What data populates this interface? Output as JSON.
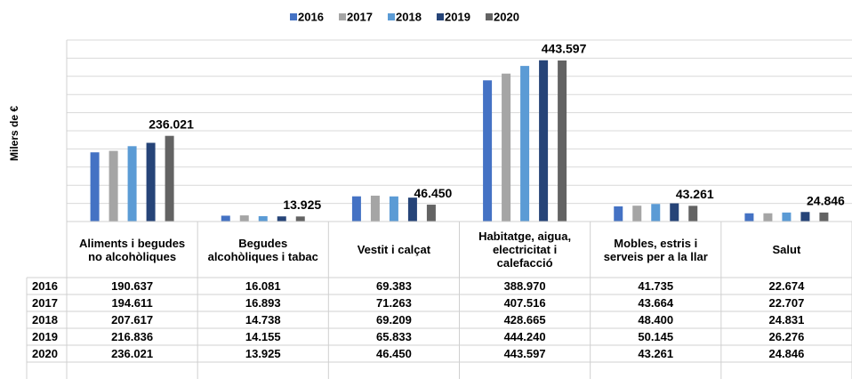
{
  "chart_data": {
    "type": "bar",
    "y_label": "Milers de €",
    "categories": [
      "Aliments i begudes no alcohòliques",
      "Begudes alcohòliques i tabac",
      "Vestit i calçat",
      "Habitatge, aigua, electricitat i calefacció",
      "Mobles, estris i serveis per a la llar",
      "Salut"
    ],
    "ylim": [
      0,
      500000
    ],
    "yticks": [
      0,
      50000,
      100000,
      150000,
      200000,
      250000,
      300000,
      350000,
      400000,
      450000,
      500000
    ],
    "grid": true,
    "legend": "top",
    "series": [
      {
        "name": "2016",
        "color": "#4472c4",
        "values": [
          190637,
          16081,
          69383,
          388970,
          41735,
          22674
        ],
        "value_labels": [
          "190.637",
          "16.081",
          "69.383",
          "388.970",
          "41.735",
          "22.674"
        ]
      },
      {
        "name": "2017",
        "color": "#a5a5a5",
        "values": [
          194611,
          16893,
          71263,
          407516,
          43664,
          22707
        ],
        "value_labels": [
          "194.611",
          "16.893",
          "71.263",
          "407.516",
          "43.664",
          "22.707"
        ]
      },
      {
        "name": "2018",
        "color": "#5b9bd5",
        "values": [
          207617,
          14738,
          69209,
          428665,
          48400,
          24831
        ],
        "value_labels": [
          "207.617",
          "14.738",
          "69.209",
          "428.665",
          "48.400",
          "24.831"
        ]
      },
      {
        "name": "2019",
        "color": "#264478",
        "values": [
          216836,
          14155,
          65833,
          444240,
          50145,
          26276
        ],
        "value_labels": [
          "216.836",
          "14.155",
          "65.833",
          "444.240",
          "50.145",
          "26.276"
        ]
      },
      {
        "name": "2020",
        "color": "#636363",
        "values": [
          236021,
          13925,
          46450,
          443597,
          43261,
          24846
        ],
        "value_labels": [
          "236.021",
          "13.925",
          "46.450",
          "443.597",
          "43.261",
          "24.846"
        ]
      }
    ]
  }
}
